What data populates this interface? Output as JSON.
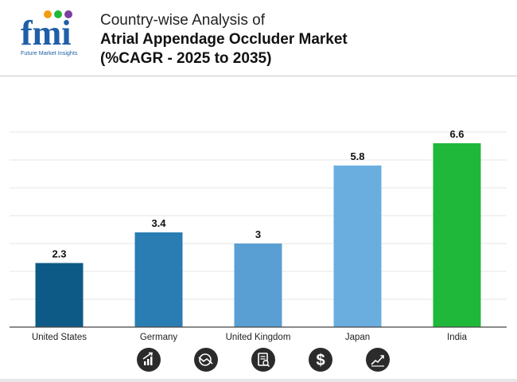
{
  "header": {
    "logo_text": "fmi",
    "logo_tagline": "Future Market Insights",
    "title_line1": "Country-wise Analysis of",
    "title_line2": "Atrial Appendage Occluder Market",
    "title_line3": "(%CAGR - 2025 to 2035)"
  },
  "chart_data": {
    "type": "bar",
    "categories": [
      "United States",
      "Germany",
      "United Kingdom",
      "Japan",
      "India"
    ],
    "values": [
      2.3,
      3.4,
      3,
      5.8,
      6.6
    ],
    "value_labels": [
      "2.3",
      "3.4",
      "3",
      "5.8",
      "6.6"
    ],
    "colors": [
      "#0e5a87",
      "#2a7db3",
      "#5a9fd4",
      "#6aaee0",
      "#1fb83a"
    ],
    "title": "",
    "xlabel": "",
    "ylabel": "",
    "ylim": [
      0,
      7
    ],
    "grid": true,
    "legend": "none"
  },
  "footer_icons": [
    "bar-chart-growth-icon",
    "pie-chart-decline-icon",
    "document-search-icon",
    "dollar-icon",
    "line-chart-growth-icon"
  ]
}
